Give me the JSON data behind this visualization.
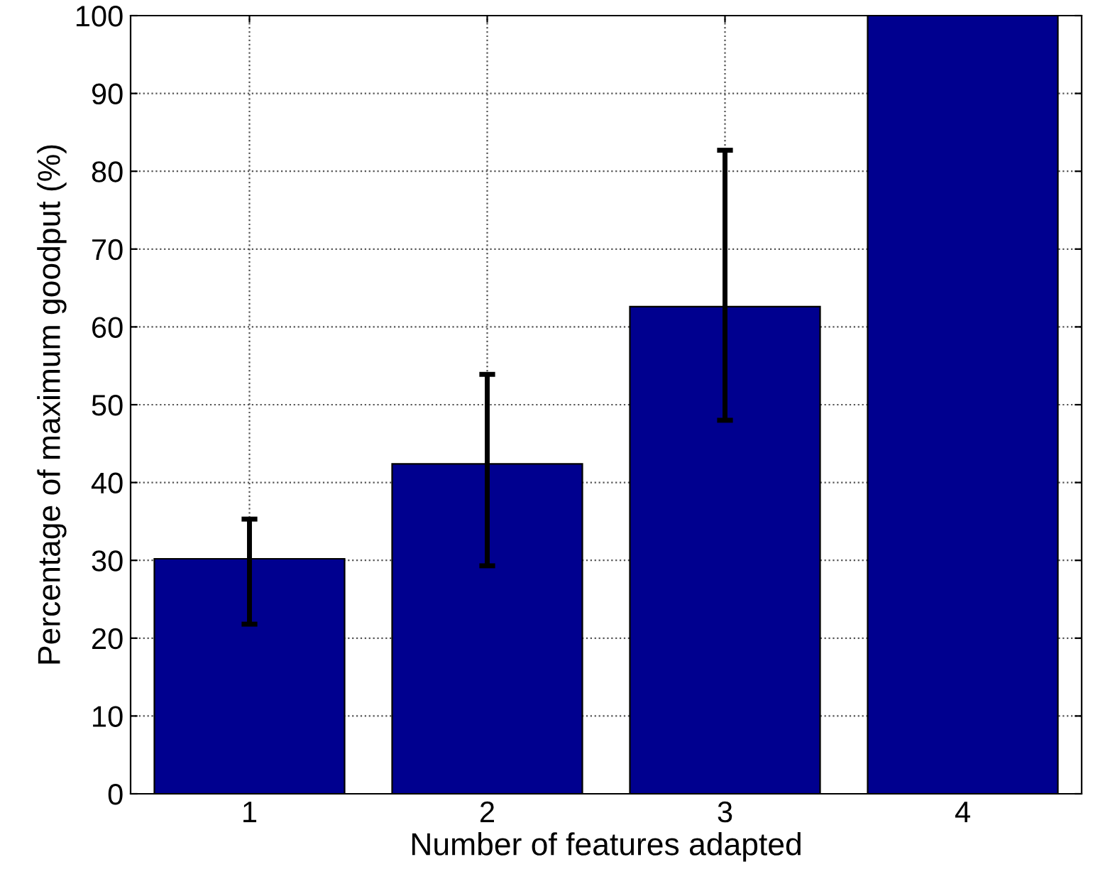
{
  "chart_data": {
    "type": "bar",
    "xlabel": "Number of features adapted",
    "ylabel": "Percentage of maximum goodput (%)",
    "categories": [
      "1",
      "2",
      "3",
      "4"
    ],
    "values": [
      30.2,
      42.4,
      62.6,
      100
    ],
    "errors": [
      [
        21.8,
        35.3
      ],
      [
        29.3,
        53.9
      ],
      [
        48.0,
        82.7
      ],
      null
    ],
    "color": "#00008f",
    "ylim": [
      0,
      100
    ],
    "yticks": [
      0,
      10,
      20,
      30,
      40,
      50,
      60,
      70,
      80,
      90,
      100
    ],
    "grid": true,
    "line_style": "dotted"
  }
}
